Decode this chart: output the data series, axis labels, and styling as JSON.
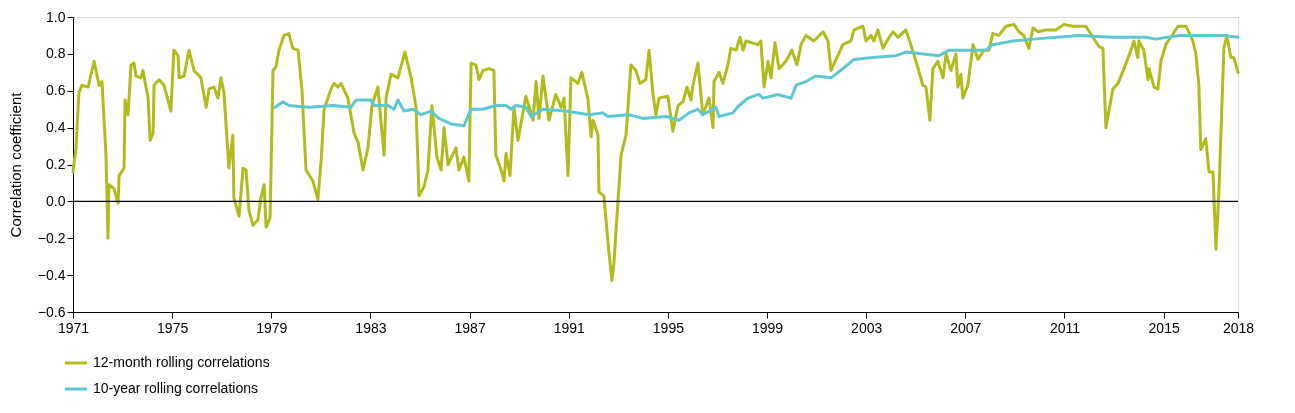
{
  "chart_data": {
    "type": "line",
    "ylabel": "Correlation coefficient",
    "xlim": [
      1971,
      2018
    ],
    "xticks": [
      1971,
      1975,
      1979,
      1983,
      1987,
      1991,
      1995,
      1999,
      2003,
      2007,
      2011,
      2015,
      2018
    ],
    "ylim": [
      -0.6,
      1.0
    ],
    "yticks": [
      {
        "value": -0.6,
        "label": "−0.6"
      },
      {
        "value": -0.4,
        "label": "−0.4"
      },
      {
        "value": -0.2,
        "label": "−0.2"
      },
      {
        "value": 0,
        "label": "0.0"
      },
      {
        "value": 0.2,
        "label": "0.2"
      },
      {
        "value": 0.4,
        "label": "0.4"
      },
      {
        "value": 0.6,
        "label": "0.6"
      },
      {
        "value": 0.8,
        "label": "0.8"
      },
      {
        "value": 1,
        "label": "1.0"
      }
    ],
    "grid": false,
    "legend": "bottom left",
    "line_style": "solid",
    "marker": "none",
    "ref_lines": [
      {
        "axis": "y",
        "value": 0,
        "label": null,
        "color": "#000000"
      }
    ],
    "series": [
      {
        "name": "12-month rolling correlations",
        "color": "#b2bb1e",
        "x": [
          1971.0,
          1971.12,
          1971.24,
          1971.36,
          1971.61,
          1971.85,
          1972.05,
          1972.17,
          1972.33,
          1972.41,
          1972.45,
          1972.65,
          1972.82,
          1972.86,
          1973.06,
          1973.1,
          1973.22,
          1973.34,
          1973.46,
          1973.54,
          1973.74,
          1973.82,
          1974.03,
          1974.11,
          1974.23,
          1974.27,
          1974.47,
          1974.67,
          1974.95,
          1975.07,
          1975.24,
          1975.28,
          1975.48,
          1975.68,
          1975.88,
          1976.16,
          1976.37,
          1976.49,
          1976.69,
          1976.85,
          1976.97,
          1977.09,
          1977.29,
          1977.45,
          1977.49,
          1977.7,
          1977.86,
          1977.98,
          1978.1,
          1978.26,
          1978.46,
          1978.58,
          1978.71,
          1978.79,
          1978.95,
          1979.07,
          1979.19,
          1979.31,
          1979.51,
          1979.71,
          1979.87,
          1980.08,
          1980.24,
          1980.4,
          1980.68,
          1980.88,
          1981.01,
          1981.13,
          1981.41,
          1981.53,
          1981.69,
          1981.81,
          1982.09,
          1982.34,
          1982.5,
          1982.7,
          1982.9,
          1983.06,
          1983.3,
          1983.55,
          1983.63,
          1983.83,
          1984.11,
          1984.39,
          1984.64,
          1984.84,
          1984.96,
          1985.16,
          1985.32,
          1985.48,
          1985.68,
          1985.85,
          1985.97,
          1986.13,
          1986.45,
          1986.57,
          1986.77,
          1986.97,
          1987.06,
          1987.26,
          1987.38,
          1987.54,
          1987.78,
          1987.98,
          1988.06,
          1988.27,
          1988.39,
          1988.47,
          1988.63,
          1988.79,
          1988.95,
          1989.27,
          1989.56,
          1989.68,
          1989.8,
          1989.96,
          1990.2,
          1990.48,
          1990.69,
          1990.81,
          1990.97,
          1991.09,
          1991.37,
          1991.53,
          1991.78,
          1991.9,
          1991.98,
          1992.18,
          1992.22,
          1992.42,
          1992.58,
          1992.74,
          1992.82,
          1992.99,
          1993.11,
          1993.31,
          1993.51,
          1993.71,
          1993.87,
          1994.11,
          1994.24,
          1994.4,
          1994.52,
          1994.64,
          1995.0,
          1995.2,
          1995.41,
          1995.61,
          1995.77,
          1995.93,
          1996.01,
          1996.21,
          1996.41,
          1996.66,
          1996.82,
          1996.86,
          1997.06,
          1997.22,
          1997.42,
          1997.54,
          1997.75,
          1997.91,
          1998.03,
          1998.15,
          1998.63,
          1998.75,
          1998.88,
          1999.04,
          1999.16,
          1999.32,
          1999.48,
          1999.76,
          2000.0,
          2000.21,
          2000.37,
          2000.57,
          2000.89,
          2001.26,
          2001.46,
          2001.58,
          2002.06,
          2002.38,
          2002.51,
          2002.87,
          2002.99,
          2003.19,
          2003.31,
          2003.47,
          2003.68,
          2003.88,
          2004.08,
          2004.28,
          2004.6,
          2004.8,
          2005.01,
          2005.29,
          2005.41,
          2005.57,
          2005.69,
          2005.89,
          2006.1,
          2006.22,
          2006.42,
          2006.62,
          2006.7,
          2006.82,
          2006.9,
          2007.1,
          2007.31,
          2007.51,
          2007.75,
          2007.95,
          2008.11,
          2008.35,
          2008.64,
          2008.96,
          2009.16,
          2009.36,
          2009.56,
          2009.73,
          2009.93,
          2010.25,
          2010.65,
          2010.98,
          2011.34,
          2011.58,
          2011.86,
          2012.15,
          2012.39,
          2012.55,
          2012.67,
          2012.95,
          2013.16,
          2013.4,
          2013.68,
          2013.8,
          2013.96,
          2014.0,
          2014.2,
          2014.37,
          2014.41,
          2014.61,
          2014.77,
          2014.89,
          2015.09,
          2015.29,
          2015.58,
          2015.9,
          2016.18,
          2016.3,
          2016.42,
          2016.5,
          2016.7,
          2016.83,
          2016.99,
          2017.11,
          2017.23,
          2017.43,
          2017.55,
          2017.71,
          2017.83,
          2018.0
        ],
        "values": [
          0.16,
          0.29,
          0.59,
          0.63,
          0.62,
          0.76,
          0.63,
          0.65,
          0.25,
          -0.2,
          0.09,
          0.07,
          -0.01,
          0.14,
          0.18,
          0.55,
          0.47,
          0.74,
          0.75,
          0.68,
          0.67,
          0.71,
          0.56,
          0.33,
          0.37,
          0.63,
          0.66,
          0.63,
          0.49,
          0.82,
          0.79,
          0.67,
          0.68,
          0.82,
          0.71,
          0.67,
          0.51,
          0.61,
          0.62,
          0.56,
          0.67,
          0.59,
          0.18,
          0.36,
          0.02,
          -0.08,
          0.18,
          0.17,
          -0.05,
          -0.13,
          -0.1,
          0.02,
          0.09,
          -0.14,
          -0.09,
          0.71,
          0.73,
          0.82,
          0.9,
          0.91,
          0.83,
          0.82,
          0.6,
          0.17,
          0.11,
          0.01,
          0.22,
          0.5,
          0.61,
          0.64,
          0.62,
          0.64,
          0.56,
          0.37,
          0.32,
          0.17,
          0.29,
          0.52,
          0.62,
          0.25,
          0.56,
          0.69,
          0.67,
          0.81,
          0.67,
          0.51,
          0.03,
          0.08,
          0.17,
          0.52,
          0.24,
          0.17,
          0.4,
          0.2,
          0.29,
          0.17,
          0.24,
          0.11,
          0.75,
          0.74,
          0.66,
          0.71,
          0.72,
          0.71,
          0.25,
          0.17,
          0.11,
          0.26,
          0.14,
          0.51,
          0.33,
          0.57,
          0.44,
          0.65,
          0.45,
          0.68,
          0.44,
          0.58,
          0.51,
          0.56,
          0.14,
          0.67,
          0.64,
          0.7,
          0.55,
          0.35,
          0.44,
          0.36,
          0.05,
          0.03,
          -0.22,
          -0.43,
          -0.34,
          0.01,
          0.25,
          0.36,
          0.74,
          0.71,
          0.64,
          0.66,
          0.82,
          0.58,
          0.47,
          0.56,
          0.57,
          0.38,
          0.52,
          0.54,
          0.62,
          0.55,
          0.63,
          0.75,
          0.47,
          0.56,
          0.4,
          0.65,
          0.7,
          0.64,
          0.74,
          0.83,
          0.82,
          0.89,
          0.82,
          0.87,
          0.85,
          0.87,
          0.62,
          0.76,
          0.67,
          0.86,
          0.72,
          0.76,
          0.82,
          0.74,
          0.85,
          0.9,
          0.87,
          0.92,
          0.87,
          0.71,
          0.85,
          0.87,
          0.93,
          0.95,
          0.87,
          0.9,
          0.87,
          0.93,
          0.83,
          0.88,
          0.92,
          0.89,
          0.93,
          0.85,
          0.76,
          0.63,
          0.62,
          0.44,
          0.72,
          0.76,
          0.67,
          0.8,
          0.71,
          0.8,
          0.62,
          0.69,
          0.56,
          0.63,
          0.85,
          0.77,
          0.82,
          0.82,
          0.91,
          0.9,
          0.95,
          0.96,
          0.92,
          0.9,
          0.83,
          0.94,
          0.92,
          0.93,
          0.93,
          0.96,
          0.95,
          0.95,
          0.95,
          0.89,
          0.84,
          0.83,
          0.4,
          0.61,
          0.64,
          0.72,
          0.82,
          0.87,
          0.78,
          0.87,
          0.82,
          0.66,
          0.72,
          0.62,
          0.61,
          0.76,
          0.85,
          0.89,
          0.95,
          0.95,
          0.87,
          0.8,
          0.63,
          0.28,
          0.34,
          0.16,
          0.16,
          -0.26,
          0.05,
          0.83,
          0.9,
          0.78,
          0.78,
          0.7
        ]
      },
      {
        "name": "10-year rolling correlations",
        "color": "#5ec8d2",
        "x": [
          1979.15,
          1979.47,
          1979.71,
          1980.52,
          1981.49,
          1982.21,
          1982.42,
          1983.02,
          1983.14,
          1983.71,
          1983.95,
          1984.11,
          1984.35,
          1984.72,
          1985.04,
          1985.44,
          1985.76,
          1986.25,
          1986.77,
          1987.06,
          1987.54,
          1988.06,
          1988.47,
          1988.67,
          1988.87,
          1989.27,
          1989.48,
          1989.96,
          1990.89,
          1991.82,
          1992.38,
          1992.58,
          1993.43,
          1993.99,
          1994.92,
          1995.45,
          1995.85,
          1996.21,
          1996.41,
          1996.94,
          1997.06,
          1997.62,
          1997.87,
          1998.23,
          1998.67,
          1998.84,
          1999.44,
          1999.97,
          2000.17,
          2000.57,
          2000.97,
          2001.58,
          2002.06,
          2002.51,
          2003.27,
          2004.2,
          2004.6,
          2005.93,
          2006.34,
          2007.83,
          2008.11,
          2008.92,
          2009.73,
          2011.58,
          2012.95,
          2014.28,
          2014.69,
          2015.62,
          2017.43,
          2018.0
        ],
        "values": [
          0.51,
          0.54,
          0.52,
          0.51,
          0.52,
          0.51,
          0.55,
          0.55,
          0.52,
          0.52,
          0.5,
          0.55,
          0.49,
          0.5,
          0.47,
          0.49,
          0.45,
          0.42,
          0.41,
          0.5,
          0.5,
          0.52,
          0.52,
          0.5,
          0.52,
          0.51,
          0.46,
          0.5,
          0.49,
          0.47,
          0.48,
          0.46,
          0.47,
          0.45,
          0.46,
          0.44,
          0.48,
          0.5,
          0.47,
          0.51,
          0.46,
          0.48,
          0.52,
          0.56,
          0.58,
          0.56,
          0.58,
          0.56,
          0.63,
          0.65,
          0.68,
          0.67,
          0.72,
          0.77,
          0.78,
          0.79,
          0.81,
          0.79,
          0.82,
          0.82,
          0.85,
          0.87,
          0.88,
          0.9,
          0.89,
          0.89,
          0.88,
          0.9,
          0.9,
          0.89
        ]
      }
    ]
  }
}
